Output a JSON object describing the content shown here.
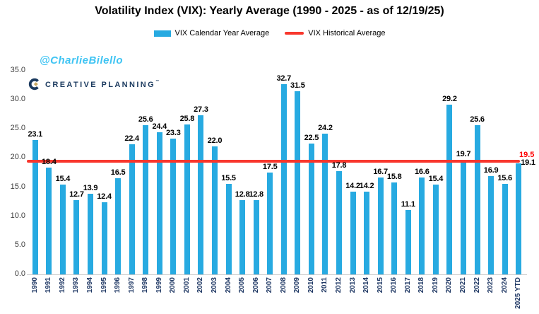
{
  "branding": {
    "watermark": "@CharlieBilello",
    "logo_text": "CREATIVE PLANNING",
    "logo_tm": "™"
  },
  "chart_data": {
    "type": "bar",
    "title": "Volatility Index (VIX): Yearly Average (1990 - 2025 - as of 12/19/25)",
    "series_name": "VIX Calendar Year Average",
    "categories": [
      "1990",
      "1991",
      "1992",
      "1993",
      "1994",
      "1995",
      "1996",
      "1997",
      "1998",
      "1999",
      "2000",
      "2001",
      "2002",
      "2003",
      "2004",
      "2005",
      "2006",
      "2007",
      "2008",
      "2009",
      "2010",
      "2011",
      "2012",
      "2013",
      "2014",
      "2015",
      "2016",
      "2017",
      "2018",
      "2019",
      "2020",
      "2021",
      "2022",
      "2023",
      "2024",
      "2025 YTD"
    ],
    "values": [
      23.1,
      18.4,
      15.4,
      12.7,
      13.9,
      12.4,
      16.5,
      22.4,
      25.6,
      24.4,
      23.3,
      25.8,
      27.3,
      22.0,
      15.5,
      12.8,
      12.8,
      17.5,
      32.7,
      31.5,
      22.5,
      24.2,
      17.8,
      14.2,
      14.2,
      16.7,
      15.8,
      11.1,
      16.6,
      15.4,
      29.2,
      19.7,
      25.6,
      16.9,
      15.6,
      19.1
    ],
    "reference_line": {
      "label": "VIX Historical Average",
      "value": 19.5,
      "value_label": "19.5"
    },
    "ylim": [
      0,
      35
    ],
    "ytick_step": 5,
    "grid": false,
    "legend_position": "top-center",
    "colors": {
      "bar": "#27AAE1",
      "ref_line": "#F8372D",
      "ref_label": "#FF0000",
      "value_label": "#000000",
      "x_tick": "#1F3864",
      "y_tick": "#3F3F3F",
      "axis_line": "#C9C9C9",
      "watermark": "#3FC4F3",
      "logo_navy": "#1B3A5F",
      "logo_gold": "#C7A761",
      "title": "#000000"
    }
  }
}
